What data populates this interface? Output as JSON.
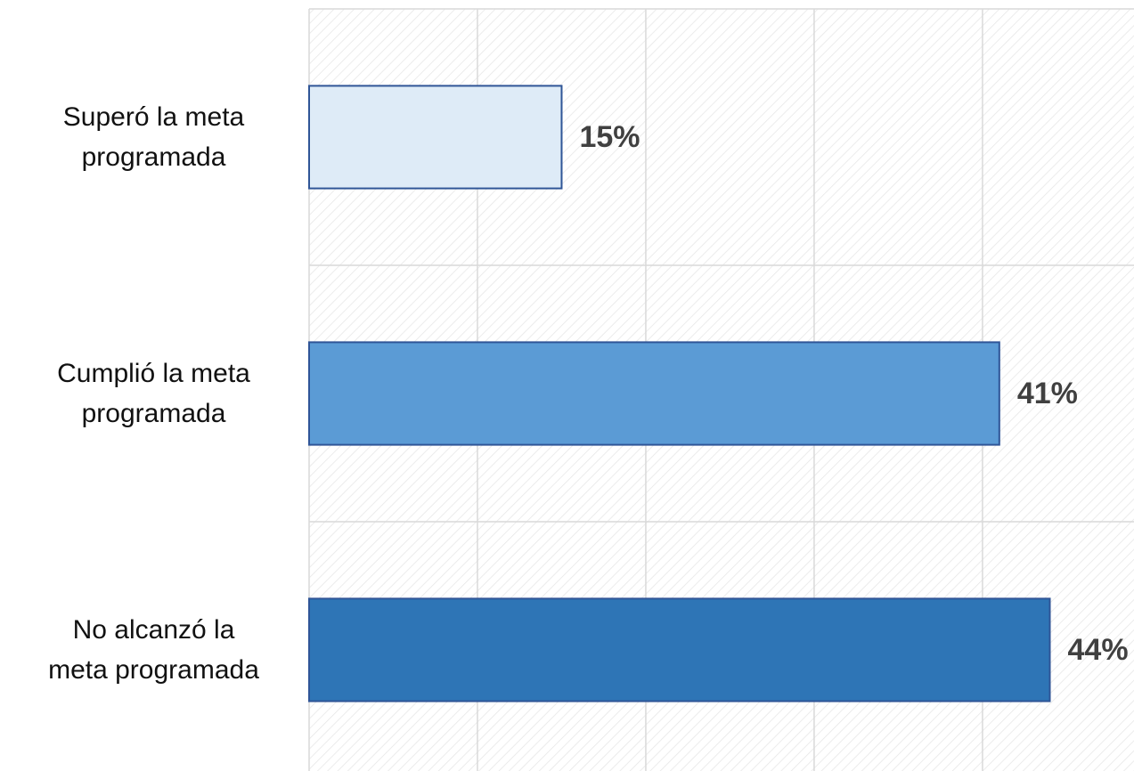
{
  "chart_data": {
    "type": "bar",
    "orientation": "horizontal",
    "categories": [
      "Superó la meta\nprogramada",
      "Cumplió la meta\nprogramada",
      "No alcanzó la\nmeta programada"
    ],
    "values": [
      15,
      41,
      44
    ],
    "value_labels": [
      "15%",
      "41%",
      "44%"
    ],
    "colors": [
      "#deebf7",
      "#5b9bd5",
      "#2e75b6"
    ],
    "edge_color": "#2f5597",
    "xlim": [
      0,
      49
    ],
    "xticks": [
      0,
      10,
      20,
      30,
      40
    ],
    "grid": true
  }
}
